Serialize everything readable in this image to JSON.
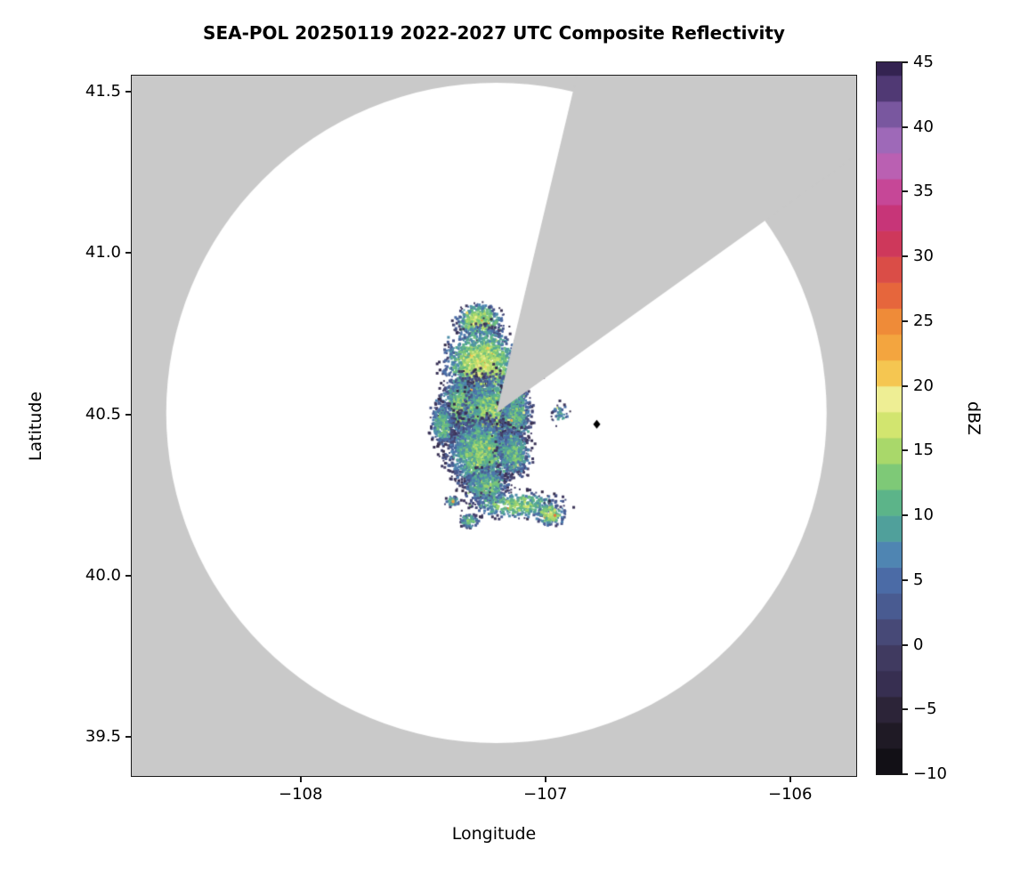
{
  "chart_data": {
    "type": "heatmap",
    "title": "SEA-POL 20250119 2022-2027 UTC Composite Reflectivity",
    "xlabel": "Longitude",
    "ylabel": "Latitude",
    "xlim": [
      -108.69,
      -105.73
    ],
    "ylim": [
      39.38,
      41.55
    ],
    "x_ticks": [
      -108,
      -107,
      -106
    ],
    "x_tick_labels": [
      "−108",
      "−107",
      "−106"
    ],
    "y_ticks": [
      39.5,
      40.0,
      40.5,
      41.0,
      41.5
    ],
    "y_tick_labels": [
      "39.5",
      "40.0",
      "40.5",
      "41.0",
      "41.5"
    ],
    "grid": false,
    "legend": "none",
    "background_color": "#ffffff",
    "no_data_color": "#c9c9c9",
    "coverage_color": "#ffffff",
    "radar": {
      "lon": -107.2,
      "lat": 40.505,
      "range_deg_lat": 1.023
    },
    "blocked_sector": {
      "azimuth_start_deg": 13.4,
      "azimuth_end_deg": 54.8
    },
    "marker": {
      "lon": -106.79,
      "lat": 40.47,
      "shape": "diamond",
      "color": "#000000"
    },
    "colorbar": {
      "label": "dBZ",
      "min": -10,
      "max": 45,
      "band_step": 2,
      "ticks": [
        -10,
        -5,
        0,
        5,
        10,
        15,
        20,
        25,
        30,
        35,
        40,
        45
      ],
      "tick_labels": [
        "−10",
        "−5",
        "0",
        "5",
        "10",
        "15",
        "20",
        "25",
        "30",
        "35",
        "40",
        "45"
      ]
    },
    "colormap_stops": [
      [
        -10,
        "#0c0b0e"
      ],
      [
        -7,
        "#1f1a25"
      ],
      [
        -5,
        "#2c2438"
      ],
      [
        -3,
        "#372f51"
      ],
      [
        0,
        "#453f68"
      ],
      [
        2,
        "#485386"
      ],
      [
        5,
        "#4b6ba6"
      ],
      [
        7,
        "#4f85b2"
      ],
      [
        9,
        "#50a09b"
      ],
      [
        11,
        "#5cb489"
      ],
      [
        13,
        "#7ec977"
      ],
      [
        15,
        "#a9d86a"
      ],
      [
        17,
        "#d2e56f"
      ],
      [
        19,
        "#eeee94"
      ],
      [
        20,
        "#f5da5e"
      ],
      [
        22,
        "#f5b243"
      ],
      [
        25,
        "#ef8b38"
      ],
      [
        27,
        "#e6663c"
      ],
      [
        30,
        "#d4414d"
      ],
      [
        32,
        "#c72f68"
      ],
      [
        34,
        "#c63a87"
      ],
      [
        36,
        "#c553a6"
      ],
      [
        38,
        "#ae6cbd"
      ],
      [
        40,
        "#8e66b3"
      ],
      [
        42,
        "#63478a"
      ],
      [
        44,
        "#3d2a5d"
      ],
      [
        45,
        "#2b1c45"
      ]
    ],
    "echo_clusters": [
      {
        "lon": -107.27,
        "lat": 40.79,
        "sx": 0.045,
        "sy": 0.025,
        "n": 500,
        "dbz": 11
      },
      {
        "lon": -107.26,
        "lat": 40.65,
        "sx": 0.07,
        "sy": 0.055,
        "n": 1900,
        "dbz": 12
      },
      {
        "lon": -107.33,
        "lat": 40.52,
        "sx": 0.05,
        "sy": 0.05,
        "n": 1100,
        "dbz": 9
      },
      {
        "lon": -107.22,
        "lat": 40.5,
        "sx": 0.06,
        "sy": 0.06,
        "n": 1500,
        "dbz": 9
      },
      {
        "lon": -107.12,
        "lat": 40.5,
        "sx": 0.035,
        "sy": 0.05,
        "n": 600,
        "dbz": 6
      },
      {
        "lon": -107.26,
        "lat": 40.38,
        "sx": 0.075,
        "sy": 0.055,
        "n": 1900,
        "dbz": 8
      },
      {
        "lon": -107.13,
        "lat": 40.38,
        "sx": 0.04,
        "sy": 0.04,
        "n": 500,
        "dbz": 6
      },
      {
        "lon": -107.24,
        "lat": 40.28,
        "sx": 0.05,
        "sy": 0.03,
        "n": 450,
        "dbz": 7
      },
      {
        "lon": -107.12,
        "lat": 40.22,
        "sx": 0.095,
        "sy": 0.02,
        "n": 450,
        "dbz": 9
      },
      {
        "lon": -106.98,
        "lat": 40.19,
        "sx": 0.03,
        "sy": 0.016,
        "n": 200,
        "dbz": 11
      },
      {
        "lon": -107.31,
        "lat": 40.17,
        "sx": 0.02,
        "sy": 0.012,
        "n": 90,
        "dbz": 8
      },
      {
        "lon": -107.38,
        "lat": 40.23,
        "sx": 0.015,
        "sy": 0.01,
        "n": 50,
        "dbz": 6
      },
      {
        "lon": -107.42,
        "lat": 40.47,
        "sx": 0.025,
        "sy": 0.035,
        "n": 350,
        "dbz": 7
      },
      {
        "lon": -107.05,
        "lat": 40.63,
        "sx": 0.02,
        "sy": 0.015,
        "n": 80,
        "dbz": 6
      },
      {
        "lon": -106.94,
        "lat": 40.5,
        "sx": 0.02,
        "sy": 0.02,
        "n": 50,
        "dbz": 4
      }
    ]
  }
}
